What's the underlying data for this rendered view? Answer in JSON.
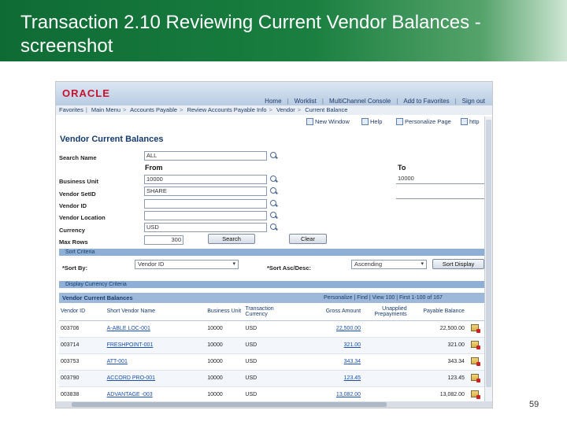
{
  "slide": {
    "title": "Transaction 2.10 Reviewing Current Vendor Balances - screenshot",
    "page_number": "59"
  },
  "app": {
    "logo": "ORACLE",
    "topnav": [
      "Home",
      "Worklist",
      "MultiChannel Console",
      "Add to Favorites",
      "Sign out"
    ],
    "breadcrumb": [
      "Favorites",
      "Main Menu",
      "Accounts Payable",
      "Review Accounts Payable Info",
      "Vendor",
      "Current Balance"
    ],
    "pagebar": {
      "new_window": "New Window",
      "help": "Help",
      "personalize": "Personalize Page",
      "http": "http"
    }
  },
  "page": {
    "title": "Vendor Current Balances",
    "from_label": "From",
    "to_label": "To",
    "fields": {
      "search_name": {
        "label": "Search Name",
        "value": "ALL"
      },
      "business_unit": {
        "label": "Business Unit",
        "from": "10000",
        "to": "10000"
      },
      "vendor_setid": {
        "label": "Vendor SetID",
        "value": "SHARE"
      },
      "vendor_id": {
        "label": "Vendor ID",
        "value": ""
      },
      "vendor_location": {
        "label": "Vendor Location",
        "value": ""
      },
      "currency": {
        "label": "Currency",
        "value": "USD"
      },
      "max_rows": {
        "label": "Max Rows",
        "value": "300"
      }
    },
    "search_button": "Search",
    "clear_button": "Clear",
    "sort_criteria_label": "Sort Criteria",
    "sort_by_label": "*Sort By:",
    "sort_by_value": "Vendor ID",
    "sort_order_label": "*Sort Asc/Desc:",
    "sort_order_value": "Ascending",
    "sort_display_button": "Sort Display",
    "display_currency_label": "Display Currency Criteria"
  },
  "grid": {
    "title": "Vendor Current Balances",
    "nav": "Personalize | Find | View 100 |     First  1-100 of 167",
    "columns": [
      "Vendor ID",
      "Short Vendor Name",
      "Business Unit",
      "Transaction Currency",
      "Gross Amount",
      "Unapplied Prepayments",
      "Payable Balance",
      ""
    ],
    "rows": [
      [
        "003706",
        "A-ABLE LOC-001",
        "10000",
        "USD",
        "22,500.00",
        "",
        "22,500.00"
      ],
      [
        "003714",
        "FRESHPOINT-001",
        "10000",
        "USD",
        "321.00",
        "",
        "321.00"
      ],
      [
        "003753",
        "ATT-001",
        "10000",
        "USD",
        "343.34",
        "",
        "343.34"
      ],
      [
        "003790",
        "ACCORD PRO-001",
        "10000",
        "USD",
        "123.45",
        "",
        "123.45"
      ],
      [
        "003838",
        "ADVANTAGE -003",
        "10000",
        "USD",
        "13,082.00",
        "",
        "13,082.00"
      ]
    ]
  }
}
